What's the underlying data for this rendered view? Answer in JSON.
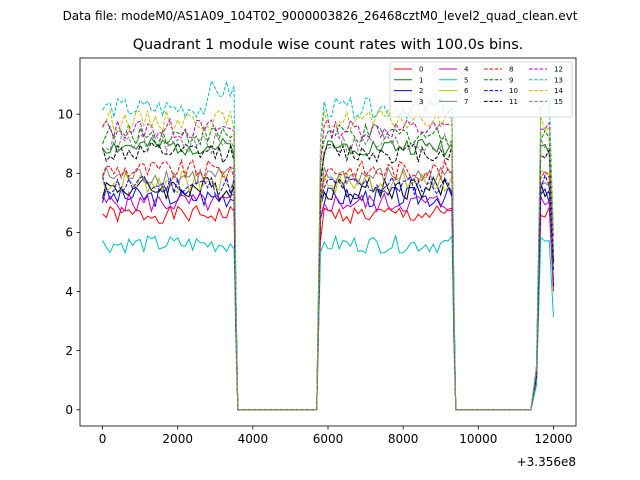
{
  "suptitle": "Data file: modeM0/AS1A09_104T02_9000003826_26468cztM0_level2_quad_clean.evt",
  "chart_data": {
    "type": "line",
    "title": "Quadrant 1 module wise count rates with 100.0s bins.",
    "xlabel": "",
    "ylabel": "",
    "x_offset_label": "+3.356e8",
    "xlim": [
      -600,
      12600
    ],
    "ylim": [
      -0.55,
      11.9
    ],
    "xticks": [
      0,
      2000,
      4000,
      6000,
      8000,
      10000,
      12000
    ],
    "xtick_labels": [
      "0",
      "2000",
      "4000",
      "6000",
      "8000",
      "10000",
      "12000"
    ],
    "yticks": [
      0,
      2,
      4,
      6,
      8,
      10
    ],
    "ytick_labels": [
      "0",
      "2",
      "4",
      "6",
      "8",
      "10"
    ],
    "legend_position": "top-right",
    "legend_columns": 4,
    "segments": [
      {
        "x0": 0,
        "x1": 3500,
        "npts": 36
      },
      {
        "x1_drop": 3550,
        "zero_x0": 3600,
        "zero_x1": 5700
      },
      {
        "x0": 5800,
        "x1": 9300,
        "npts": 36
      },
      {
        "x1_drop": 9350,
        "zero_x0": 9400,
        "zero_x1": 11400
      },
      {
        "x0": 11550,
        "x1": 12000,
        "npts": 5
      }
    ],
    "series": [
      {
        "name": "0",
        "color": "#ff0000",
        "dash": "solid",
        "mean": 6.6,
        "noise": 0.3,
        "seed": 1
      },
      {
        "name": "1",
        "color": "#008000",
        "dash": "solid",
        "mean": 8.9,
        "noise": 0.3,
        "seed": 2
      },
      {
        "name": "2",
        "color": "#0000ff",
        "dash": "solid",
        "mean": 7.2,
        "noise": 0.35,
        "seed": 3
      },
      {
        "name": "3",
        "color": "#000000",
        "dash": "solid",
        "mean": 7.5,
        "noise": 0.4,
        "seed": 4
      },
      {
        "name": "4",
        "color": "#bf00bf",
        "dash": "solid",
        "mean": 7.0,
        "noise": 0.35,
        "seed": 5
      },
      {
        "name": "5",
        "color": "#00bfbf",
        "dash": "solid",
        "mean": 5.6,
        "noise": 0.3,
        "seed": 6
      },
      {
        "name": "6",
        "color": "#bfbf00",
        "dash": "solid",
        "mean": 7.7,
        "noise": 0.4,
        "seed": 7
      },
      {
        "name": "7",
        "color": "#808080",
        "dash": "solid",
        "mean": 7.9,
        "noise": 0.35,
        "seed": 8
      },
      {
        "name": "8",
        "color": "#ff0000",
        "dash": "dashed",
        "mean": 8.1,
        "noise": 0.35,
        "seed": 9
      },
      {
        "name": "9",
        "color": "#008000",
        "dash": "dashed",
        "mean": 9.3,
        "noise": 0.35,
        "seed": 10
      },
      {
        "name": "10",
        "color": "#0000ff",
        "dash": "dashed",
        "mean": 7.6,
        "noise": 0.35,
        "seed": 11
      },
      {
        "name": "11",
        "color": "#000000",
        "dash": "dashed",
        "mean": 8.7,
        "noise": 0.35,
        "seed": 12
      },
      {
        "name": "12",
        "color": "#bf00bf",
        "dash": "dashed",
        "mean": 9.5,
        "noise": 0.35,
        "seed": 13
      },
      {
        "name": "13",
        "color": "#00bfbf",
        "dash": "dashed",
        "mean": 10.2,
        "noise": 0.35,
        "seed": 14
      },
      {
        "name": "14",
        "color": "#bfbf00",
        "dash": "dashed",
        "mean": 9.8,
        "noise": 0.35,
        "seed": 15
      },
      {
        "name": "15",
        "color": "#808080",
        "dash": "dashed",
        "mean": 9.0,
        "noise": 0.35,
        "seed": 16
      }
    ]
  }
}
